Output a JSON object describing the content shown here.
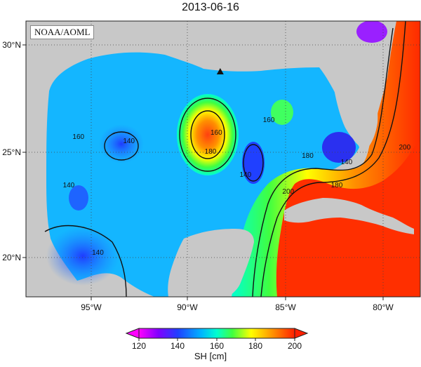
{
  "title": "2013-06-16",
  "credit": "NOAA/AOML",
  "marker": {
    "name": "triangle-marker",
    "lon": -88.5,
    "lat": 28.7
  },
  "chart_data": {
    "type": "heatmap",
    "title": "2013-06-16",
    "xlabel": "",
    "ylabel": "",
    "x_ticks": [
      "95°W",
      "90°W",
      "85°W",
      "80°W"
    ],
    "y_ticks": [
      "30°N",
      "25°N",
      "20°N"
    ],
    "xlim": [
      -98.5,
      -78.2
    ],
    "ylim": [
      18.0,
      31.1
    ],
    "colorbar": {
      "label": "SH [cm]",
      "ticks": [
        "120",
        "140",
        "160",
        "180",
        "200"
      ],
      "range": [
        120,
        200
      ],
      "colors": [
        "#ff00ff",
        "#8000ff",
        "#2040ff",
        "#00b4ff",
        "#00ffd0",
        "#40ff40",
        "#ffff00",
        "#ff9000",
        "#ff2000"
      ]
    },
    "contour_labels": [
      {
        "text": "160",
        "lon": -95.8,
        "lat": 25.5
      },
      {
        "text": "140",
        "lon": -93.2,
        "lat": 25.3
      },
      {
        "text": "140",
        "lon": -96.3,
        "lat": 23.2
      },
      {
        "text": "140",
        "lon": -94.8,
        "lat": 20.0
      },
      {
        "text": "160",
        "lon": -88.7,
        "lat": 25.7
      },
      {
        "text": "180",
        "lon": -89.0,
        "lat": 24.8
      },
      {
        "text": "140",
        "lon": -87.2,
        "lat": 23.7
      },
      {
        "text": "160",
        "lon": -86.0,
        "lat": 26.3
      },
      {
        "text": "180",
        "lon": -84.0,
        "lat": 24.6
      },
      {
        "text": "140",
        "lon": -82.0,
        "lat": 24.3
      },
      {
        "text": "180",
        "lon": -82.5,
        "lat": 23.2
      },
      {
        "text": "200",
        "lon": -85.0,
        "lat": 22.9
      },
      {
        "text": "200",
        "lon": -79.0,
        "lat": 25.0
      }
    ]
  }
}
